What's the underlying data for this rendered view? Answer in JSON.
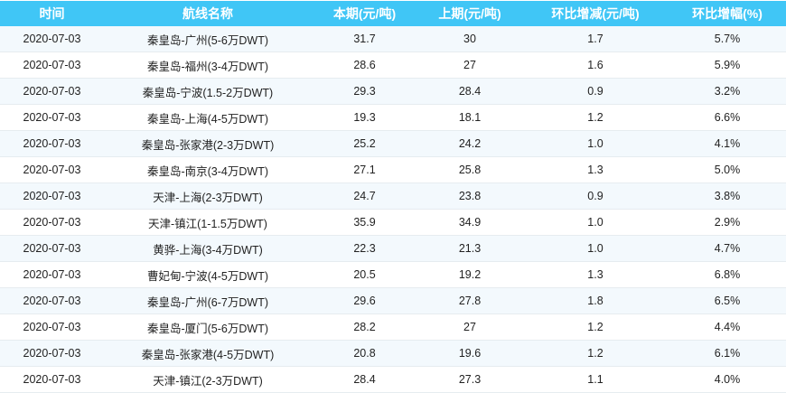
{
  "table": {
    "headers": [
      "时间",
      "航线名称",
      "本期(元/吨)",
      "上期(元/吨)",
      "环比增减(元/吨)",
      "环比增幅(%)"
    ],
    "rows": [
      [
        "2020-07-03",
        "秦皇岛-广州(5-6万DWT)",
        "31.7",
        "30",
        "1.7",
        "5.7%"
      ],
      [
        "2020-07-03",
        "秦皇岛-福州(3-4万DWT)",
        "28.6",
        "27",
        "1.6",
        "5.9%"
      ],
      [
        "2020-07-03",
        "秦皇岛-宁波(1.5-2万DWT)",
        "29.3",
        "28.4",
        "0.9",
        "3.2%"
      ],
      [
        "2020-07-03",
        "秦皇岛-上海(4-5万DWT)",
        "19.3",
        "18.1",
        "1.2",
        "6.6%"
      ],
      [
        "2020-07-03",
        "秦皇岛-张家港(2-3万DWT)",
        "25.2",
        "24.2",
        "1.0",
        "4.1%"
      ],
      [
        "2020-07-03",
        "秦皇岛-南京(3-4万DWT)",
        "27.1",
        "25.8",
        "1.3",
        "5.0%"
      ],
      [
        "2020-07-03",
        "天津-上海(2-3万DWT)",
        "24.7",
        "23.8",
        "0.9",
        "3.8%"
      ],
      [
        "2020-07-03",
        "天津-镇江(1-1.5万DWT)",
        "35.9",
        "34.9",
        "1.0",
        "2.9%"
      ],
      [
        "2020-07-03",
        "黄骅-上海(3-4万DWT)",
        "22.3",
        "21.3",
        "1.0",
        "4.7%"
      ],
      [
        "2020-07-03",
        "曹妃甸-宁波(4-5万DWT)",
        "20.5",
        "19.2",
        "1.3",
        "6.8%"
      ],
      [
        "2020-07-03",
        "秦皇岛-广州(6-7万DWT)",
        "29.6",
        "27.8",
        "1.8",
        "6.5%"
      ],
      [
        "2020-07-03",
        "秦皇岛-厦门(5-6万DWT)",
        "28.2",
        "27",
        "1.2",
        "4.4%"
      ],
      [
        "2020-07-03",
        "秦皇岛-张家港(4-5万DWT)",
        "20.8",
        "19.6",
        "1.2",
        "6.1%"
      ],
      [
        "2020-07-03",
        "天津-镇江(2-3万DWT)",
        "28.4",
        "27.3",
        "1.1",
        "4.0%"
      ]
    ]
  },
  "colors": {
    "header_bg": "#40c6f6",
    "row_alt": "#f3f9fd"
  }
}
